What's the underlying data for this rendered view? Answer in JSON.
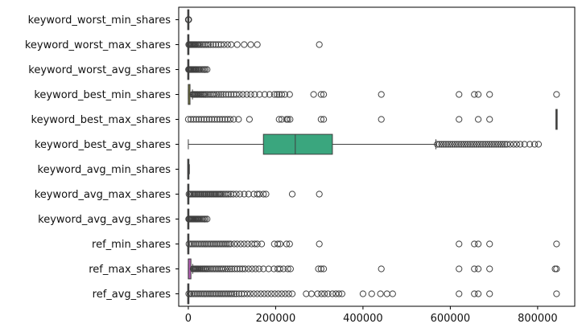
{
  "chart_data": {
    "type": "boxplot",
    "orientation": "horizontal",
    "title": "",
    "xlabel": "",
    "ylabel": "",
    "xlim": [
      -22000,
      885000
    ],
    "xticks": [
      0,
      200000,
      400000,
      600000,
      800000
    ],
    "xtick_labels": [
      "0",
      "200000",
      "400000",
      "600000",
      "800000"
    ],
    "grid": false,
    "series": [
      {
        "name": "keyword_worst_min_shares",
        "color": "#3b5b92",
        "q1": 0,
        "median": 0,
        "q3": 0,
        "whisker_low": -1,
        "whisker_high": 300,
        "outliers": [
          -1,
          200,
          300,
          600,
          1000
        ]
      },
      {
        "name": "keyword_worst_max_shares",
        "color": "#4b6a8c",
        "q1": 0,
        "median": 0,
        "q3": 0,
        "whisker_low": 0,
        "whisker_high": 0,
        "outliers": [
          1000,
          3000,
          5000,
          7000,
          9000,
          11000,
          13000,
          15000,
          17000,
          20000,
          23000,
          26000,
          30000,
          34000,
          38000,
          42000,
          46000,
          51000,
          57000,
          63000,
          69000,
          75000,
          82000,
          90000,
          98000,
          112000,
          128000,
          143000,
          158000,
          300000
        ]
      },
      {
        "name": "keyword_worst_avg_shares",
        "color": "#5c5a8a",
        "q1": 0,
        "median": 0,
        "q3": 0,
        "whisker_low": 0,
        "whisker_high": 0,
        "outliers": [
          500,
          1500,
          3000,
          5000,
          7000,
          9000,
          11000,
          13000,
          15000,
          17000,
          19000,
          22000,
          25000,
          29000,
          33000,
          36000,
          39000,
          43000
        ]
      },
      {
        "name": "keyword_best_min_shares",
        "color": "#78783a",
        "q1": 0,
        "median": 0,
        "q3": 3900,
        "whisker_low": 0,
        "whisker_high": 9500,
        "outliers": [
          10000,
          12000,
          14000,
          16000,
          18000,
          20000,
          22000,
          25000,
          28000,
          31000,
          34000,
          37000,
          40000,
          44000,
          48000,
          52000,
          56000,
          60000,
          65000,
          70000,
          75000,
          80000,
          86000,
          92000,
          98000,
          104000,
          110000,
          117000,
          125000,
          134000,
          143000,
          152000,
          163000,
          175000,
          186000,
          197000,
          203000,
          208000,
          214000,
          221000,
          232000,
          287000,
          304000,
          310000,
          442000,
          620000,
          655000,
          664000,
          690000,
          843300
        ]
      },
      {
        "name": "keyword_best_max_shares",
        "color": "#9a8f36",
        "q1": 843300,
        "median": 843300,
        "q3": 843300,
        "whisker_low": 843300,
        "whisker_high": 843300,
        "outliers": [
          0,
          6000,
          12000,
          18000,
          24000,
          30000,
          36000,
          42000,
          48000,
          54000,
          60000,
          66000,
          72000,
          78000,
          84000,
          90000,
          96000,
          104000,
          115000,
          140000,
          208000,
          214000,
          225000,
          228000,
          233000,
          304000,
          310000,
          442000,
          620000,
          664000,
          690000
        ]
      },
      {
        "name": "keyword_best_avg_shares",
        "color": "#3aa67e",
        "q1": 172000,
        "median": 245000,
        "q3": 330000,
        "whisker_low": 0,
        "whisker_high": 567000,
        "outliers": [
          570000,
          575000,
          580000,
          585000,
          590000,
          595000,
          600000,
          605000,
          610000,
          615000,
          620000,
          625000,
          630000,
          635000,
          640000,
          645000,
          650000,
          655000,
          660000,
          665000,
          670000,
          675000,
          680000,
          685000,
          690000,
          695000,
          700000,
          705000,
          710000,
          715000,
          720000,
          725000,
          730000,
          737000,
          745000,
          752000,
          760000,
          770000,
          782000,
          793000,
          802000
        ]
      },
      {
        "name": "keyword_avg_min_shares",
        "color": "#5fa7a0",
        "q1": 0,
        "median": 0,
        "q3": 0,
        "whisker_low": -1,
        "whisker_high": 2500,
        "outliers": []
      },
      {
        "name": "keyword_avg_max_shares",
        "color": "#7cc39a",
        "q1": 0,
        "median": 0,
        "q3": 0,
        "whisker_low": 0,
        "whisker_high": 0,
        "outliers": [
          1500,
          4000,
          7000,
          10000,
          13000,
          16000,
          19000,
          22000,
          25000,
          28000,
          31000,
          34000,
          37000,
          40000,
          43000,
          46000,
          49000,
          52000,
          55000,
          58000,
          61000,
          64000,
          67000,
          70000,
          73000,
          76000,
          80000,
          84000,
          88000,
          92000,
          97000,
          103000,
          110000,
          118000,
          128000,
          138000,
          150000,
          158000,
          163000,
          172000,
          178000,
          238000,
          300000
        ]
      },
      {
        "name": "keyword_avg_avg_shares",
        "color": "#6e7f8f",
        "q1": 0,
        "median": 0,
        "q3": 0,
        "whisker_low": 0,
        "whisker_high": 0,
        "outliers": [
          800,
          2000,
          4000,
          6000,
          8000,
          10000,
          12000,
          14000,
          16000,
          18000,
          20000,
          22000,
          24000,
          27000,
          30000,
          33000,
          36000,
          39000,
          43000
        ]
      },
      {
        "name": "ref_min_shares",
        "color": "#8c8cb4",
        "q1": 0,
        "median": 0,
        "q3": 0,
        "whisker_low": 0,
        "whisker_high": 0,
        "outliers": [
          1500,
          5000,
          9000,
          13000,
          17000,
          21000,
          25000,
          29000,
          33000,
          37000,
          41000,
          45000,
          49000,
          53000,
          57000,
          61000,
          65000,
          69000,
          73000,
          77000,
          81000,
          85000,
          89000,
          93000,
          97000,
          105000,
          112000,
          120000,
          128000,
          136000,
          145000,
          152000,
          158000,
          168000,
          197000,
          205000,
          210000,
          225000,
          232000,
          300000,
          620000,
          655000,
          664000,
          690000,
          843300
        ]
      },
      {
        "name": "ref_max_shares",
        "color": "#b45fb4",
        "q1": 0,
        "median": 0,
        "q3": 6000,
        "whisker_low": 0,
        "whisker_high": 10000,
        "outliers": [
          11000,
          13000,
          15000,
          17000,
          19000,
          21000,
          23000,
          26000,
          29000,
          32000,
          35000,
          38000,
          41000,
          44000,
          48000,
          52000,
          56000,
          60000,
          64000,
          68000,
          72000,
          76000,
          80000,
          85000,
          90000,
          95000,
          100000,
          106000,
          112000,
          118000,
          124000,
          130000,
          138000,
          146000,
          154000,
          162000,
          172000,
          184000,
          196000,
          205000,
          210000,
          218000,
          228000,
          234000,
          298000,
          304000,
          310000,
          442000,
          620000,
          655000,
          664000,
          690000,
          840000,
          843300
        ]
      },
      {
        "name": "ref_avg_shares",
        "color": "#6b5aa0",
        "q1": 0,
        "median": 0,
        "q3": 0,
        "whisker_low": 0,
        "whisker_high": 0,
        "outliers": [
          1000,
          4000,
          8000,
          12000,
          16000,
          20000,
          24000,
          28000,
          32000,
          36000,
          40000,
          44000,
          48000,
          52000,
          56000,
          60000,
          64000,
          68000,
          72000,
          76000,
          80000,
          84000,
          88000,
          92000,
          96000,
          100000,
          105000,
          110000,
          116000,
          122000,
          128000,
          135000,
          142000,
          150000,
          158000,
          166000,
          174000,
          182000,
          190000,
          198000,
          206000,
          214000,
          222000,
          230000,
          238000,
          270000,
          282000,
          296000,
          305000,
          312000,
          320000,
          330000,
          338000,
          345000,
          352000,
          400000,
          420000,
          440000,
          455000,
          468000,
          620000,
          655000,
          664000,
          690000,
          843300
        ]
      }
    ]
  }
}
